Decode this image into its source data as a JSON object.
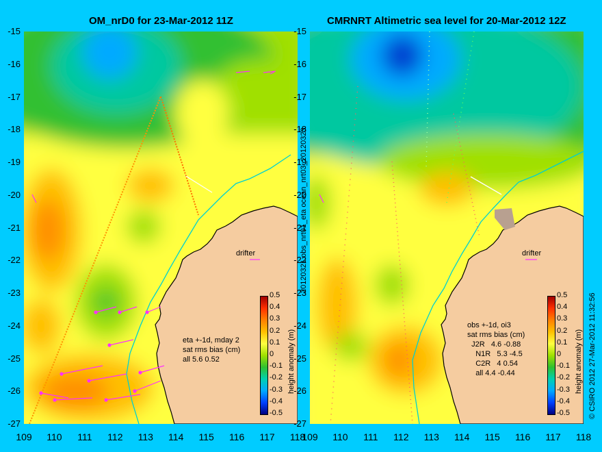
{
  "left": {
    "title": "OM_nrD0 for 23-Mar-2012 11Z",
    "stats": "eta +-1d, mday 2\nsat rms bias (cm)\nall 5.6 0.52",
    "drifter": "drifter"
  },
  "right": {
    "title": "CMRNRT Altimetric sea level  for 20-Mar-2012 12Z",
    "stats": "obs +-1d, oi3\nsat rms bias (cm)\n  J2R   4.6 -0.88\n    N1R   5.3 -4.5\n    C2R   4 0.54\n    all 4.4 -0.44",
    "drifter": "drifter"
  },
  "yticks": [
    "-15",
    "-16",
    "-17",
    "-18",
    "-19",
    "-20",
    "-21",
    "-22",
    "-23",
    "-24",
    "-25",
    "-26",
    "-27"
  ],
  "xticks": [
    "109",
    "110",
    "111",
    "112",
    "113",
    "114",
    "115",
    "116",
    "117",
    "118"
  ],
  "colorbar": {
    "label": "height anomaly (m)",
    "ticks": [
      "0.5",
      "0.4",
      "0.3",
      "0.2",
      "0.1",
      "0",
      "-0.1",
      "-0.2",
      "-0.3",
      "-0.4",
      "-0.5"
    ]
  },
  "side_text_middle": "20120321.obs_nrt01_eta ocean_nrt03_20120323",
  "side_text_right": "© CSIRO 2012   27-Mar-2012 11:32:56",
  "colors": {
    "background": "#00ccff",
    "land": "#f5cca0",
    "coast": "#000000"
  }
}
